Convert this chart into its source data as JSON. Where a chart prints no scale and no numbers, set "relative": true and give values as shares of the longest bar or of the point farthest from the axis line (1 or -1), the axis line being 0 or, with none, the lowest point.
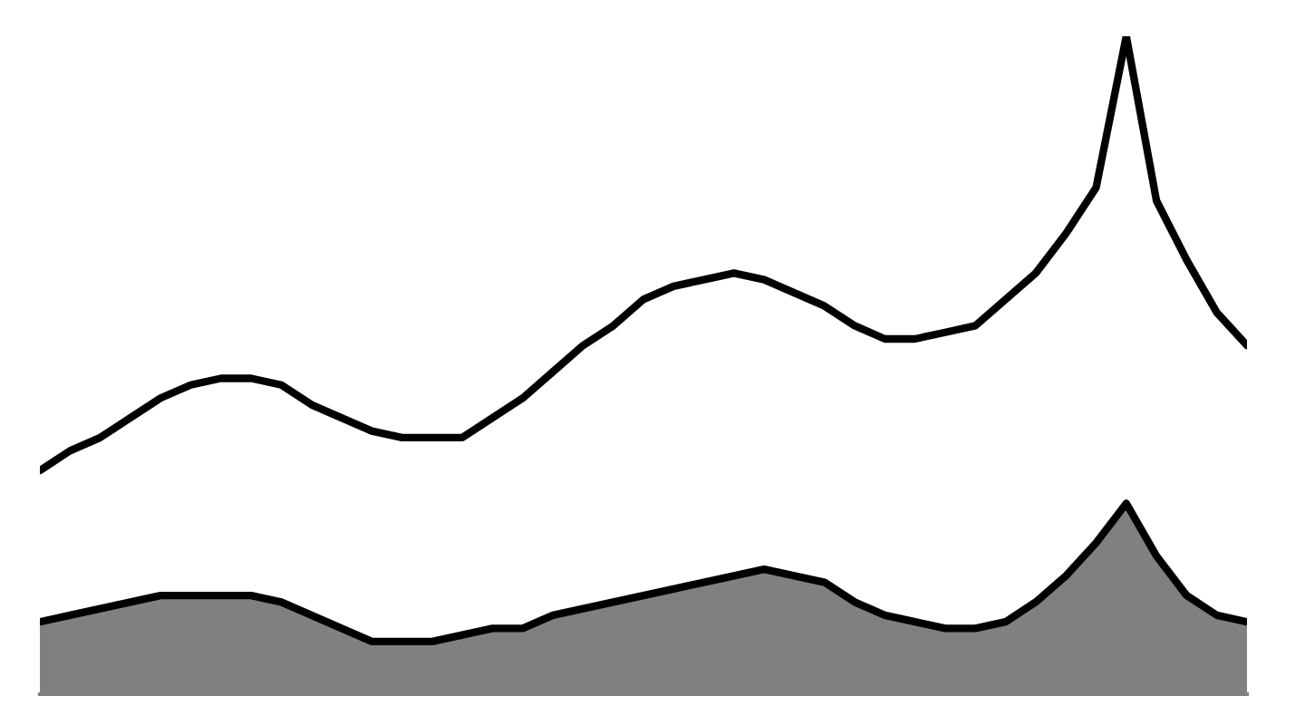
{
  "chart_data": {
    "type": "line",
    "relative": true,
    "categories": [
      null,
      null,
      null,
      null,
      null,
      null,
      null,
      null,
      null,
      null,
      null,
      null,
      null,
      null,
      null,
      null,
      null,
      null,
      null,
      null,
      null,
      null,
      null,
      null,
      null,
      null,
      null,
      null,
      null,
      null,
      null,
      null,
      null,
      null,
      null,
      null,
      null,
      null,
      null,
      null,
      null
    ],
    "series": [
      {
        "type": "line",
        "color": "#000000",
        "values": [
          0.34,
          0.37,
          0.39,
          0.42,
          0.45,
          0.47,
          0.48,
          0.48,
          0.47,
          0.44,
          0.42,
          0.4,
          0.39,
          0.39,
          0.39,
          0.42,
          0.45,
          0.49,
          0.53,
          0.56,
          0.6,
          0.62,
          0.63,
          0.64,
          0.63,
          0.61,
          0.59,
          0.56,
          0.54,
          0.54,
          0.55,
          0.56,
          0.6,
          0.64,
          0.7,
          0.77,
          1.0,
          0.75,
          0.66,
          0.58,
          0.53
        ]
      },
      {
        "type": "area",
        "color": "#808080",
        "values": [
          0.11,
          0.12,
          0.13,
          0.14,
          0.15,
          0.15,
          0.15,
          0.15,
          0.14,
          0.12,
          0.1,
          0.08,
          0.08,
          0.08,
          0.09,
          0.1,
          0.1,
          0.12,
          0.13,
          0.14,
          0.15,
          0.16,
          0.17,
          0.18,
          0.19,
          0.18,
          0.17,
          0.14,
          0.12,
          0.11,
          0.1,
          0.1,
          0.11,
          0.14,
          0.18,
          0.23,
          0.29,
          0.21,
          0.15,
          0.12,
          0.11
        ]
      }
    ]
  }
}
